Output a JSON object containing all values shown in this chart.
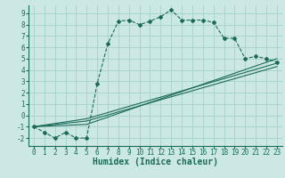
{
  "xlabel": "Humidex (Indice chaleur)",
  "bg_color": "#cce8e4",
  "grid_color": "#aad4ce",
  "line_color": "#1a6b5a",
  "xlim": [
    -0.5,
    23.5
  ],
  "ylim": [
    -2.7,
    9.7
  ],
  "xticks": [
    0,
    1,
    2,
    3,
    4,
    5,
    6,
    7,
    8,
    9,
    10,
    11,
    12,
    13,
    14,
    15,
    16,
    17,
    18,
    19,
    20,
    21,
    22,
    23
  ],
  "yticks": [
    -2,
    -1,
    0,
    1,
    2,
    3,
    4,
    5,
    6,
    7,
    8,
    9
  ],
  "series1_x": [
    0,
    1,
    2,
    3,
    4,
    5,
    6,
    7,
    8,
    9,
    10,
    11,
    12,
    13,
    14,
    15,
    16,
    17,
    18,
    19,
    20,
    21,
    22,
    23
  ],
  "series1_y": [
    -1,
    -1.5,
    -2,
    -1.5,
    -2,
    -2,
    2.8,
    6.3,
    8.3,
    8.4,
    8.0,
    8.3,
    8.7,
    9.3,
    8.4,
    8.4,
    8.4,
    8.2,
    6.8,
    6.8,
    5.0,
    5.2,
    5.0,
    4.7
  ],
  "series2_x": [
    0,
    5,
    23
  ],
  "series2_y": [
    -1,
    -0.8,
    5.0
  ],
  "series3_x": [
    0,
    5,
    23
  ],
  "series3_y": [
    -1,
    -0.5,
    4.3
  ],
  "series4_x": [
    0,
    5,
    23
  ],
  "series4_y": [
    -1,
    -0.3,
    4.6
  ],
  "tick_fontsize": 5.5,
  "xlabel_fontsize": 7
}
